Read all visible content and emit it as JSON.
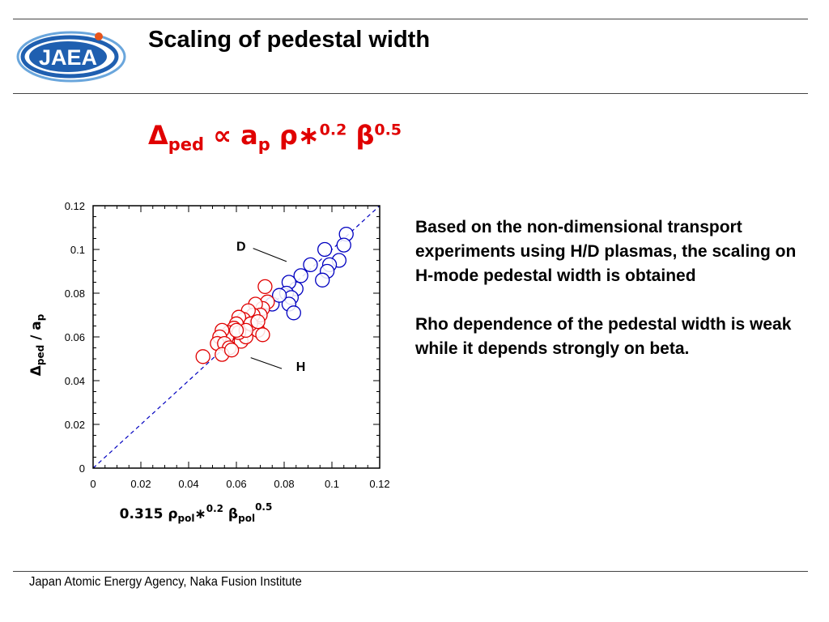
{
  "slide": {
    "title": "Scaling of pedestal width",
    "logo_text": "JAEA",
    "formula": {
      "delta": "Δ",
      "delta_sub": "ped",
      "proportional": "∝",
      "a": "a",
      "a_sub": "p",
      "rho": "ρ",
      "star": "∗",
      "rho_exp": "0.2",
      "beta": "β",
      "beta_exp": "0.5"
    },
    "description": [
      "Based on the non-dimensional transport experiments using H/D plasmas, the scaling on H-mode pedestal width is obtained",
      "Rho dependence of the pedestal width is weak while it depends strongly on beta."
    ],
    "footer": "Japan Atomic Energy Agency, Naka Fusion Institute",
    "colors": {
      "red_series": "#e00000",
      "blue_series": "#0000c0",
      "fit_line": "#0000c0",
      "logo_blue": "#1f5fb0"
    }
  },
  "chart_data": {
    "type": "scatter",
    "xlim": [
      0,
      0.12
    ],
    "ylim": [
      0,
      0.12
    ],
    "x_ticks": [
      "0",
      "0.02",
      "0.04",
      "0.06",
      "0.08",
      "0.1",
      "0.12"
    ],
    "y_ticks": [
      "0",
      "0.02",
      "0.04",
      "0.06",
      "0.08",
      "0.1",
      "0.12"
    ],
    "xlabel": {
      "coef": "0.315 ",
      "rho": "ρ",
      "rho_sub": "pol",
      "star": "∗",
      "rho_exp": "0.2",
      "beta": " β",
      "beta_sub": "pol",
      "beta_exp": "0.5"
    },
    "ylabel": {
      "delta": "Δ",
      "delta_sub": "ped",
      "slash": " / ",
      "a": "a",
      "a_sub": "p"
    },
    "grid": false,
    "fit_line": {
      "x": [
        0,
        0.12
      ],
      "y": [
        0,
        0.12
      ],
      "style": "dashed"
    },
    "annotations": [
      {
        "text": "D",
        "series": "D"
      },
      {
        "text": "H",
        "series": "H"
      }
    ],
    "series": [
      {
        "name": "D",
        "color": "#0000c0",
        "marker": "open-circle",
        "points": [
          [
            0.106,
            0.107
          ],
          [
            0.105,
            0.102
          ],
          [
            0.103,
            0.095
          ],
          [
            0.097,
            0.1
          ],
          [
            0.099,
            0.093
          ],
          [
            0.098,
            0.09
          ],
          [
            0.096,
            0.086
          ],
          [
            0.091,
            0.093
          ],
          [
            0.087,
            0.088
          ],
          [
            0.085,
            0.082
          ],
          [
            0.082,
            0.085
          ],
          [
            0.081,
            0.08
          ],
          [
            0.083,
            0.078
          ],
          [
            0.082,
            0.075
          ],
          [
            0.084,
            0.071
          ],
          [
            0.075,
            0.075
          ],
          [
            0.078,
            0.079
          ]
        ]
      },
      {
        "name": "H",
        "color": "#e00000",
        "marker": "open-circle",
        "points": [
          [
            0.072,
            0.083
          ],
          [
            0.073,
            0.076
          ],
          [
            0.071,
            0.073
          ],
          [
            0.068,
            0.075
          ],
          [
            0.07,
            0.07
          ],
          [
            0.067,
            0.07
          ],
          [
            0.065,
            0.072
          ],
          [
            0.063,
            0.068
          ],
          [
            0.061,
            0.069
          ],
          [
            0.06,
            0.066
          ],
          [
            0.059,
            0.064
          ],
          [
            0.057,
            0.062
          ],
          [
            0.056,
            0.06
          ],
          [
            0.054,
            0.063
          ],
          [
            0.053,
            0.06
          ],
          [
            0.052,
            0.057
          ],
          [
            0.055,
            0.057
          ],
          [
            0.057,
            0.055
          ],
          [
            0.054,
            0.052
          ],
          [
            0.046,
            0.051
          ],
          [
            0.062,
            0.058
          ],
          [
            0.064,
            0.06
          ],
          [
            0.069,
            0.063
          ],
          [
            0.071,
            0.061
          ],
          [
            0.066,
            0.066
          ],
          [
            0.061,
            0.062
          ],
          [
            0.058,
            0.054
          ],
          [
            0.069,
            0.067
          ],
          [
            0.064,
            0.063
          ],
          [
            0.06,
            0.063
          ]
        ]
      }
    ]
  }
}
